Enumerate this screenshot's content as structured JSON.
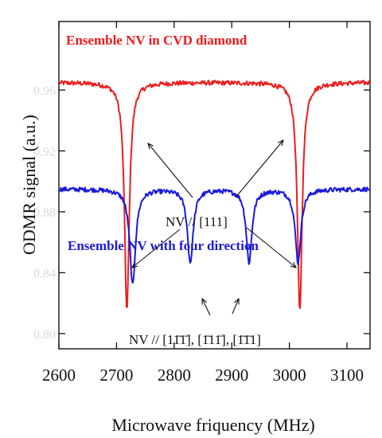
{
  "chart_data": {
    "type": "line",
    "title": "",
    "xlabel": "Microwave friquency (MHz)",
    "ylabel": "ODMR signal (a.u.)",
    "xlim": [
      2600,
      3140
    ],
    "ylim": [
      0.79,
      1.005
    ],
    "x_ticks": [
      2600,
      2700,
      2800,
      2900,
      3000,
      3100
    ],
    "y_ticks_faint": [
      "0.80",
      "0.84",
      "0.88",
      "0.92",
      "0.96"
    ],
    "y_tick_values": [
      0.8,
      0.84,
      0.88,
      0.92,
      0.96
    ],
    "grid": false,
    "legend": "none",
    "series": [
      {
        "name": "Ensemble NV in CVD diamond",
        "color": "#ee1c1c",
        "baseline": 0.965,
        "dips": [
          {
            "center": 2718,
            "depth": 0.15,
            "width": 5
          },
          {
            "center": 3018,
            "depth": 0.15,
            "width": 5
          }
        ]
      },
      {
        "name": "Ensemble NV with four direction",
        "color": "#1a1adb",
        "baseline": 0.895,
        "dips": [
          {
            "center": 2728,
            "depth": 0.063,
            "width": 6
          },
          {
            "center": 2828,
            "depth": 0.048,
            "width": 6
          },
          {
            "center": 2930,
            "depth": 0.048,
            "width": 6
          },
          {
            "center": 3015,
            "depth": 0.048,
            "width": 6
          }
        ]
      }
    ],
    "annotations": [
      {
        "id": "nv111",
        "text": "NV // [111]"
      },
      {
        "id": "nvfour",
        "text": "NV //  [11̄1̄], [1̄11̄], [1̄1̄1]"
      }
    ]
  }
}
